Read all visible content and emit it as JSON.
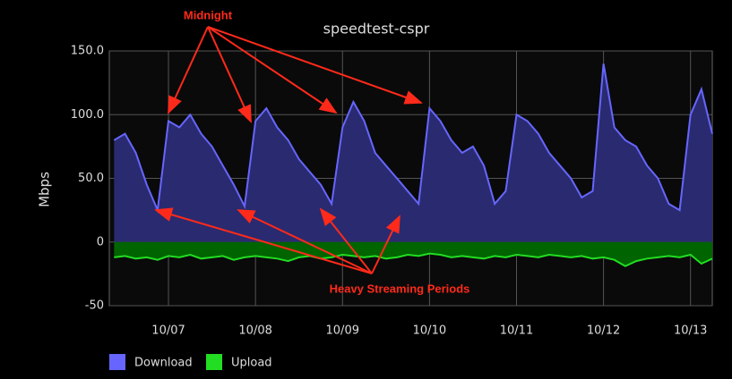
{
  "chart_data": {
    "type": "area",
    "title": "speedtest-cspr",
    "y_label": "Mbps",
    "annotations": [
      "Midnight",
      "Heavy Streaming Periods"
    ],
    "x": [
      6.375,
      6.5,
      6.625,
      6.75,
      6.875,
      7,
      7.125,
      7.25,
      7.375,
      7.5,
      7.625,
      7.75,
      7.875,
      8,
      8.125,
      8.25,
      8.375,
      8.5,
      8.625,
      8.75,
      8.875,
      9,
      9.125,
      9.25,
      9.375,
      9.5,
      9.625,
      9.75,
      9.875,
      10,
      10.125,
      10.25,
      10.375,
      10.5,
      10.625,
      10.75,
      10.875,
      11,
      11.125,
      11.25,
      11.375,
      11.5,
      11.625,
      11.75,
      11.875,
      12,
      12.125,
      12.25,
      12.375,
      12.5,
      12.625,
      12.75,
      12.875,
      13,
      13.125,
      13.25
    ],
    "series": [
      {
        "name": "Download",
        "color": "#6666ff",
        "fill": "#2a2a70",
        "values": [
          80,
          85,
          70,
          45,
          25,
          95,
          90,
          100,
          85,
          75,
          60,
          45,
          28,
          95,
          105,
          90,
          80,
          65,
          55,
          45,
          30,
          90,
          110,
          95,
          70,
          60,
          50,
          40,
          30,
          105,
          95,
          80,
          70,
          75,
          60,
          30,
          40,
          100,
          95,
          85,
          70,
          60,
          50,
          35,
          40,
          140,
          90,
          80,
          75,
          60,
          50,
          30,
          25,
          100,
          120,
          85
        ]
      },
      {
        "name": "Upload",
        "color": "#22dd22",
        "fill": "#006400",
        "values": [
          -12,
          -11,
          -13,
          -12,
          -14,
          -11,
          -12,
          -10,
          -13,
          -12,
          -11,
          -14,
          -12,
          -11,
          -12,
          -13,
          -15,
          -12,
          -11,
          -13,
          -12,
          -10,
          -11,
          -12,
          -11,
          -13,
          -12,
          -10,
          -11,
          -9,
          -10,
          -12,
          -11,
          -12,
          -13,
          -11,
          -12,
          -10,
          -11,
          -12,
          -10,
          -11,
          -12,
          -11,
          -13,
          -12,
          -14,
          -19,
          -15,
          -13,
          -12,
          -11,
          -12,
          -10,
          -17,
          -13
        ]
      }
    ],
    "xlim": [
      6.32,
      13.25
    ],
    "xticks": [
      {
        "value": 7,
        "label": "10/07"
      },
      {
        "value": 8,
        "label": "10/08"
      },
      {
        "value": 9,
        "label": "10/09"
      },
      {
        "value": 10,
        "label": "10/10"
      },
      {
        "value": 11,
        "label": "10/11"
      },
      {
        "value": 12,
        "label": "10/12"
      },
      {
        "value": 13,
        "label": "10/13"
      }
    ],
    "ylim": [
      -50,
      150
    ],
    "yticks": [
      -50,
      0,
      {
        "value": 50,
        "label": "50.0"
      },
      {
        "value": 100,
        "label": "100.0"
      },
      {
        "value": 150,
        "label": "150.0"
      }
    ],
    "grid": true
  }
}
